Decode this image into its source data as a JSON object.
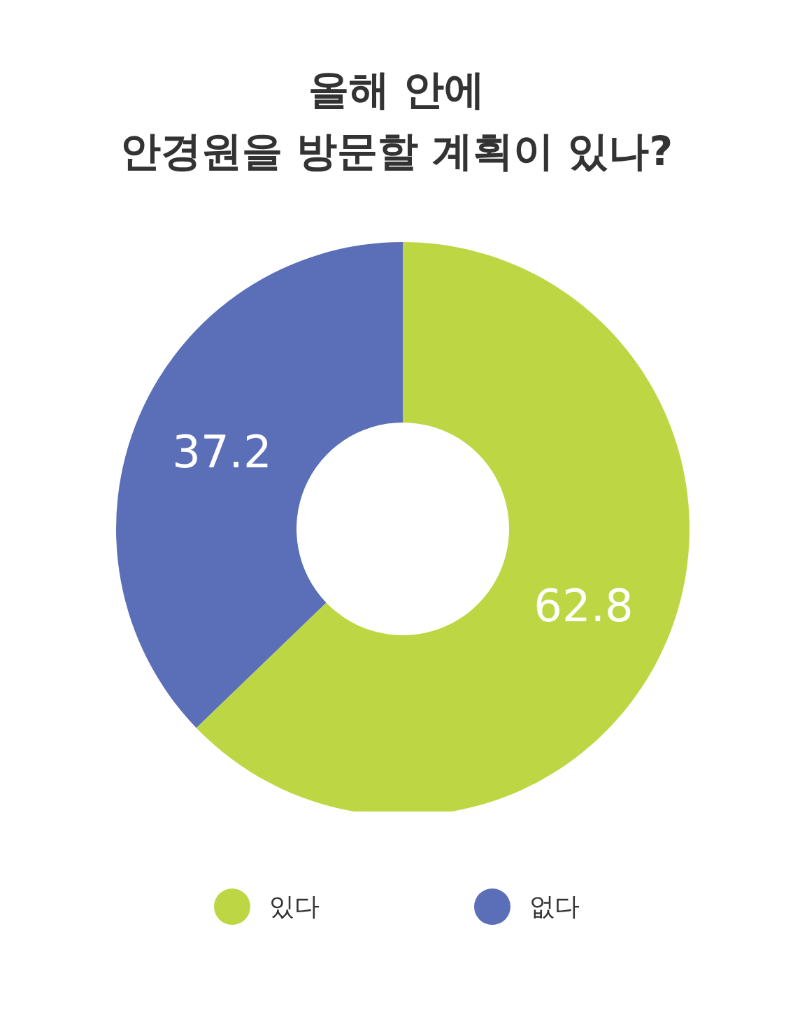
{
  "chart_data": {
    "type": "donut",
    "title": "올해 안에\n안경원을 방문할 계획이 있나?",
    "categories": [
      "있다",
      "없다"
    ],
    "values": [
      62.8,
      37.2
    ],
    "colors": [
      "#bdd744",
      "#5b6fb9"
    ],
    "data_labels": true,
    "legend": "bottom"
  }
}
